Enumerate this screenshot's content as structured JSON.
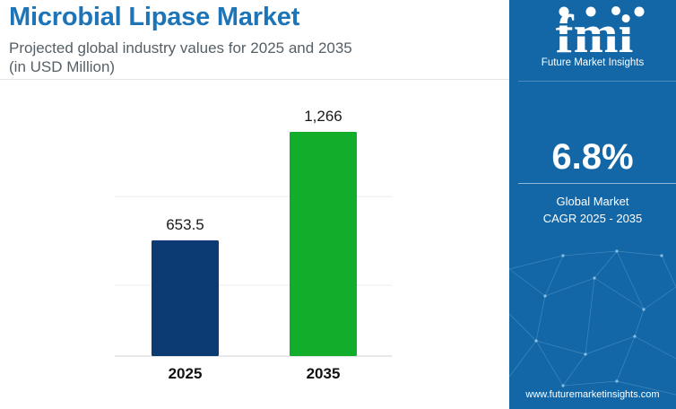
{
  "header": {
    "title": "Microbial Lipase Market",
    "subtitle_line1": "Projected global industry values for 2025 and 2035",
    "subtitle_line2": "(in USD Million)"
  },
  "chart_data": {
    "type": "bar",
    "categories": [
      "2025",
      "2035"
    ],
    "values": [
      653.5,
      1266
    ],
    "value_labels": [
      "653.5",
      "1,266"
    ],
    "colors": [
      "#0c3b73",
      "#12ad2b"
    ],
    "ylim": [
      0,
      1600
    ],
    "grid": true,
    "legend": "none"
  },
  "sidebar": {
    "logo_glyphs": "fmi",
    "brand": "Future Market Insights",
    "cagr_value": "6.8%",
    "cagr_label_line1": "Global Market",
    "cagr_label_line2": "CAGR 2025 - 2035",
    "website": "www.futuremarketinsights.com",
    "background_color": "#1467a6"
  }
}
